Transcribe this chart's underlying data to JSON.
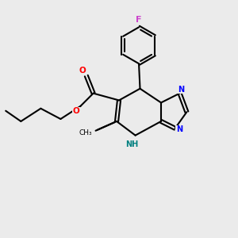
{
  "background_color": "#ebebeb",
  "bond_color": "#000000",
  "line_width": 1.5,
  "figsize": [
    3.0,
    3.0
  ],
  "dpi": 100,
  "xlim": [
    0,
    10
  ],
  "ylim": [
    0,
    10
  ]
}
